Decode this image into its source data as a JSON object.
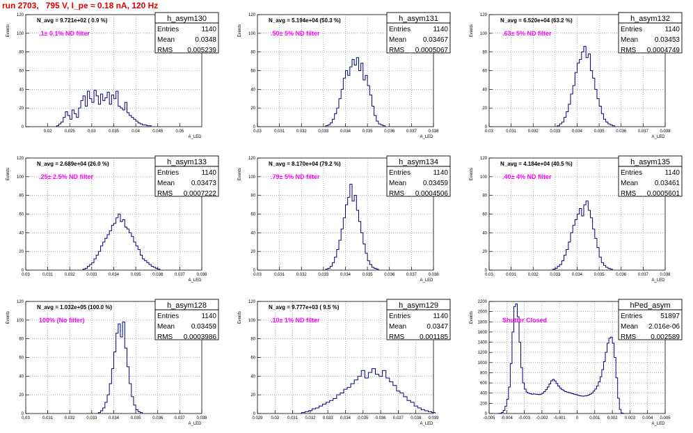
{
  "run_title": "run 2703,   795 V, I_pe ≈ 0.18 nA, 120 Hz",
  "chart_data": [
    {
      "type": "bar",
      "name": "h_asym130",
      "xlabel": "A_LED",
      "ylabel": "Events",
      "navg": "N_avg = 9.721e+02 ( 0.9 %)",
      "annotation": ".1± 0.1% ND filter",
      "stats": {
        "entries": "1140",
        "mean": "0.0348",
        "rms": "0.005239"
      },
      "xlim": [
        0.015,
        0.055
      ],
      "ylim": [
        0,
        120
      ],
      "xticks": [
        "0.02",
        "0.025",
        "0.03",
        "0.035",
        "0.04",
        "0.045",
        "0.05"
      ],
      "yticks": [
        "0",
        "20",
        "40",
        "60",
        "80",
        "100",
        "120"
      ],
      "hist": {
        "x0": 0.022,
        "dx": 0.0005,
        "values": [
          1,
          3,
          5,
          10,
          16,
          12,
          8,
          18,
          14,
          10,
          20,
          28,
          33,
          22,
          38,
          30,
          26,
          39,
          33,
          24,
          35,
          28,
          31,
          37,
          24,
          34,
          30,
          38,
          22,
          20,
          18,
          26,
          15,
          12,
          10,
          8,
          6,
          4,
          3,
          2,
          2,
          1,
          1
        ]
      }
    },
    {
      "type": "bar",
      "name": "h_asym131",
      "xlabel": "A_LED",
      "ylabel": "Events",
      "navg": "N_avg = 5.194e+04 (50.3 %)",
      "annotation": ".50± 5% ND filter",
      "stats": {
        "entries": "1140",
        "mean": "0.03467",
        "rms": "0.0005067"
      },
      "xlim": [
        0.03,
        0.038
      ],
      "ylim": [
        0,
        120
      ],
      "xticks": [
        "0.03",
        "0.031",
        "0.032",
        "0.033",
        "0.034",
        "0.035",
        "0.036",
        "0.037",
        "0.038"
      ],
      "yticks": [
        "0",
        "20",
        "40",
        "60",
        "80",
        "100",
        "120"
      ],
      "hist": {
        "x0": 0.0331,
        "dx": 0.0001,
        "values": [
          1,
          2,
          4,
          8,
          14,
          20,
          30,
          40,
          52,
          60,
          55,
          64,
          72,
          66,
          74,
          60,
          68,
          50,
          55,
          44,
          34,
          22,
          12,
          6,
          3,
          2,
          1
        ]
      }
    },
    {
      "type": "bar",
      "name": "h_asym132",
      "xlabel": "A_LED",
      "ylabel": "Events",
      "navg": "N_avg = 6.520e+04 (63.2 %)",
      "annotation": ".63± 5% ND filter",
      "stats": {
        "entries": "1140",
        "mean": "0.03453",
        "rms": "0.0004749"
      },
      "xlim": [
        0.03,
        0.038
      ],
      "ylim": [
        0,
        120
      ],
      "xticks": [
        "0.03",
        "0.031",
        "0.032",
        "0.033",
        "0.034",
        "0.035",
        "0.036",
        "0.037",
        "0.038"
      ],
      "yticks": [
        "0",
        "20",
        "40",
        "60",
        "80",
        "100",
        "120"
      ],
      "hist": {
        "x0": 0.0331,
        "dx": 0.0001,
        "values": [
          1,
          3,
          5,
          10,
          16,
          24,
          35,
          44,
          58,
          68,
          72,
          80,
          86,
          74,
          78,
          60,
          52,
          40,
          30,
          22,
          14,
          8,
          5,
          3,
          2,
          1
        ]
      }
    },
    {
      "type": "bar",
      "name": "h_asym133",
      "xlabel": "A_LED",
      "ylabel": "Events",
      "navg": "N_avg = 2.689e+04 (26.0 %)",
      "annotation": ".25± 2.5% ND filter",
      "stats": {
        "entries": "1140",
        "mean": "0.03473",
        "rms": "0.0007222"
      },
      "xlim": [
        0.03,
        0.038
      ],
      "ylim": [
        0,
        120
      ],
      "xticks": [
        "0.03",
        "0.031",
        "0.032",
        "0.033",
        "0.034",
        "0.035",
        "0.036",
        "0.037",
        "0.038"
      ],
      "yticks": [
        "0",
        "20",
        "40",
        "60",
        "80",
        "100",
        "120"
      ],
      "hist": {
        "x0": 0.0326,
        "dx": 0.0001,
        "values": [
          1,
          2,
          4,
          6,
          8,
          12,
          16,
          20,
          26,
          30,
          34,
          38,
          42,
          48,
          50,
          56,
          60,
          52,
          54,
          46,
          44,
          40,
          36,
          30,
          26,
          22,
          16,
          12,
          10,
          8,
          6,
          4,
          3,
          2,
          1
        ]
      }
    },
    {
      "type": "bar",
      "name": "h_asym134",
      "xlabel": "A_LED",
      "ylabel": "Events",
      "navg": "N_avg = 8.170e+04 (79.2 %)",
      "annotation": ".79± 5% ND filter",
      "stats": {
        "entries": "1140",
        "mean": "0.03459",
        "rms": "0.0004506"
      },
      "xlim": [
        0.03,
        0.038
      ],
      "ylim": [
        0,
        120
      ],
      "xticks": [
        "0.03",
        "0.031",
        "0.032",
        "0.033",
        "0.034",
        "0.035",
        "0.036",
        "0.037",
        "0.038"
      ],
      "yticks": [
        "0",
        "20",
        "40",
        "60",
        "80",
        "100",
        "120"
      ],
      "hist": {
        "x0": 0.0331,
        "dx": 0.0001,
        "values": [
          1,
          2,
          4,
          8,
          14,
          22,
          32,
          44,
          56,
          70,
          78,
          92,
          74,
          80,
          64,
          52,
          40,
          28,
          18,
          10,
          6,
          3,
          2,
          1
        ]
      }
    },
    {
      "type": "bar",
      "name": "h_asym135",
      "xlabel": "A_LED",
      "ylabel": "Events",
      "navg": "N_avg = 4.184e+04 (40.5 %)",
      "annotation": ".40± 4% ND filter",
      "stats": {
        "entries": "1140",
        "mean": "0.03461",
        "rms": "0.0005601"
      },
      "xlim": [
        0.03,
        0.038
      ],
      "ylim": [
        0,
        120
      ],
      "xticks": [
        "0.03",
        "0.031",
        "0.032",
        "0.033",
        "0.034",
        "0.035",
        "0.036",
        "0.037",
        "0.038"
      ],
      "yticks": [
        "0",
        "20",
        "40",
        "60",
        "80",
        "100",
        "120"
      ],
      "hist": {
        "x0": 0.0329,
        "dx": 0.0001,
        "values": [
          1,
          2,
          4,
          6,
          10,
          16,
          22,
          30,
          40,
          48,
          54,
          60,
          66,
          58,
          70,
          74,
          64,
          56,
          44,
          34,
          24,
          14,
          8,
          5,
          3,
          2,
          1
        ]
      }
    },
    {
      "type": "bar",
      "name": "h_asym128",
      "xlabel": "A_LED",
      "ylabel": "Events",
      "navg": "N_avg = 1.032e+05 (100.0 %)",
      "annotation": "100% (No filter)",
      "stats": {
        "entries": "1140",
        "mean": "0.03459",
        "rms": "0.0003986"
      },
      "xlim": [
        0.03,
        0.038
      ],
      "ylim": [
        0,
        120
      ],
      "xticks": [
        "0.03",
        "0.031",
        "0.032",
        "0.033",
        "0.034",
        "0.035",
        "0.036",
        "0.037",
        "0.038"
      ],
      "yticks": [
        "0",
        "20",
        "40",
        "60",
        "80",
        "100",
        "120"
      ],
      "hist": {
        "x0": 0.0333,
        "dx": 0.0001,
        "values": [
          1,
          3,
          6,
          12,
          20,
          32,
          48,
          66,
          86,
          96,
          82,
          98,
          70,
          50,
          32,
          18,
          9,
          4,
          2,
          1
        ]
      }
    },
    {
      "type": "bar",
      "name": "h_asym129",
      "xlabel": "A_LED",
      "ylabel": "Events",
      "navg": "N_avg = 9.777e+03 ( 9.5 %)",
      "annotation": ".10± 1% ND filter",
      "stats": {
        "entries": "1140",
        "mean": "0.0347",
        "rms": "0.001185"
      },
      "xlim": [
        0.029,
        0.039
      ],
      "ylim": [
        0,
        120
      ],
      "xticks": [
        "0.029",
        "0.03",
        "0.031",
        "0.032",
        "0.033",
        "0.034",
        "0.035",
        "0.036",
        "0.037",
        "0.038",
        "0.039"
      ],
      "yticks": [
        "0",
        "20",
        "40",
        "60",
        "80",
        "100",
        "120"
      ],
      "hist": {
        "x0": 0.0315,
        "dx": 0.0002,
        "values": [
          1,
          2,
          3,
          5,
          6,
          8,
          10,
          12,
          14,
          16,
          20,
          22,
          26,
          28,
          32,
          36,
          40,
          46,
          38,
          44,
          48,
          42,
          40,
          46,
          38,
          34,
          30,
          24,
          22,
          18,
          14,
          12,
          8,
          6,
          4,
          3,
          2,
          1
        ]
      }
    },
    {
      "type": "bar",
      "name": "hPed_asym",
      "xlabel": "A_LED",
      "ylabel": "Events",
      "navg": "",
      "annotation": "Shutter Closed",
      "stats": {
        "entries": "51897",
        "mean": "2.016e-06",
        "rms": "0.002589"
      },
      "xlim": [
        -0.005,
        0.005
      ],
      "ylim": [
        0,
        2200
      ],
      "xticks": [
        "-0.005",
        "-0.004",
        "-0.003",
        "-0.002",
        "-0.001",
        "0",
        "0.001",
        "0.002",
        "0.003",
        "0.004",
        "0.005"
      ],
      "yticks": [
        "0",
        "200",
        "400",
        "600",
        "800",
        "1000",
        "1200",
        "1400",
        "1600",
        "1800",
        "2000",
        "2200"
      ],
      "hist": {
        "x0": -0.0045,
        "dx": 0.0001,
        "values": [
          0,
          5,
          20,
          60,
          140,
          280,
          520,
          980,
          1600,
          2100,
          2150,
          1900,
          1400,
          900,
          600,
          480,
          420,
          400,
          390,
          380,
          385,
          380,
          375,
          370,
          380,
          400,
          430,
          470,
          520,
          580,
          640,
          670,
          640,
          590,
          540,
          500,
          470,
          450,
          430,
          420,
          410,
          400,
          390,
          380,
          370,
          360,
          350,
          345,
          340,
          345,
          350,
          360,
          380,
          400,
          440,
          480,
          540,
          620,
          720,
          860,
          1020,
          1200,
          1380,
          1480,
          1500,
          1380,
          1100,
          700,
          300,
          80,
          10,
          0
        ]
      }
    }
  ]
}
